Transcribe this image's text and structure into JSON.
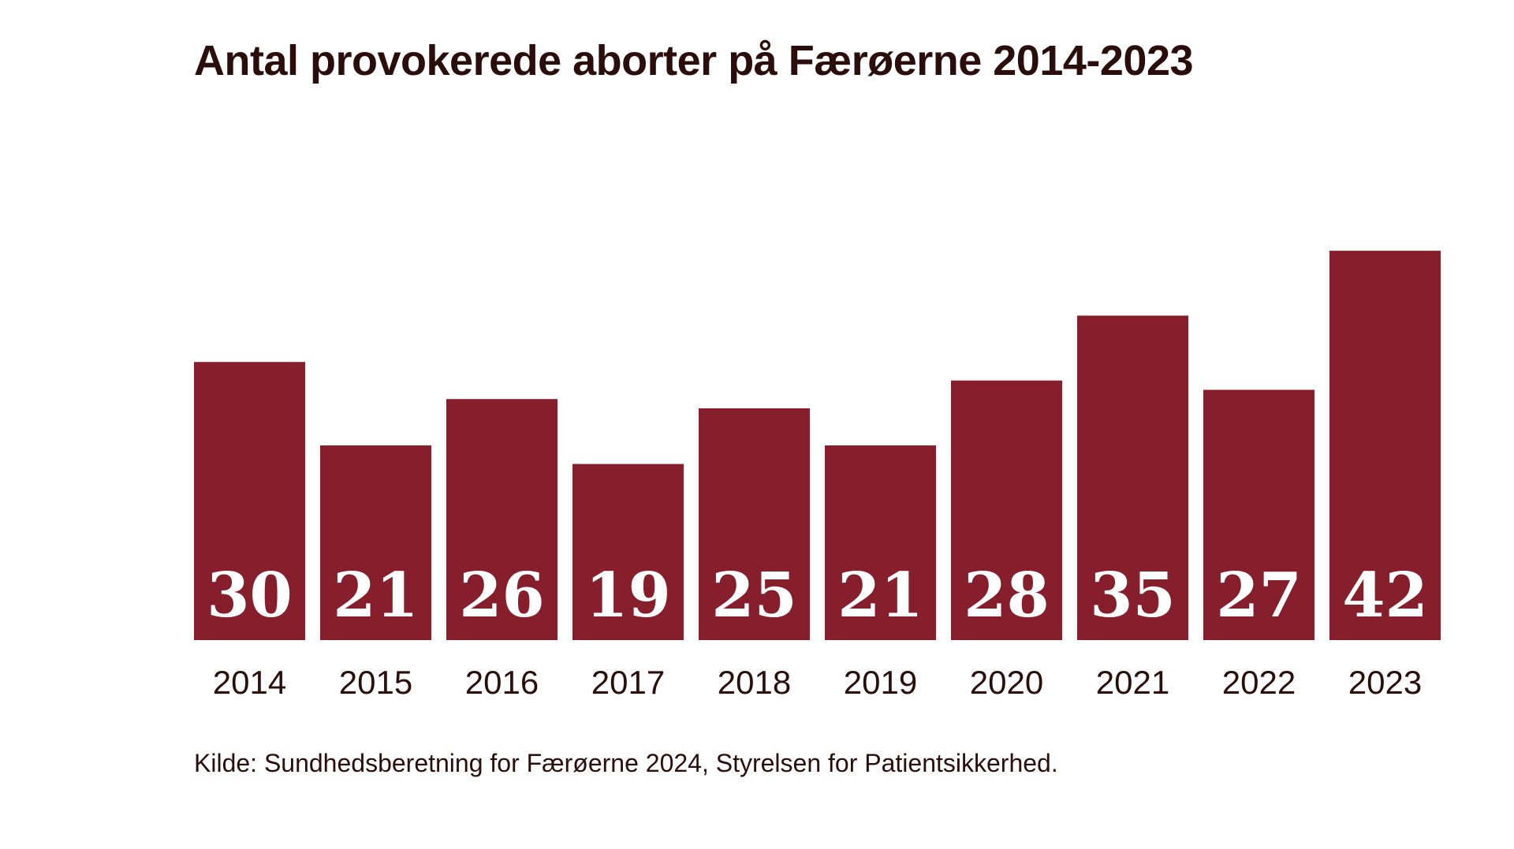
{
  "chart_data": {
    "type": "bar",
    "title": "Antal provokerede aborter på Færøerne 2014-2023",
    "categories": [
      "2014",
      "2015",
      "2016",
      "2017",
      "2018",
      "2019",
      "2020",
      "2021",
      "2022",
      "2023"
    ],
    "values": [
      30,
      21,
      26,
      19,
      25,
      21,
      28,
      35,
      27,
      42
    ],
    "data_labels": [
      "30",
      "21",
      "26",
      "19",
      "25",
      "21",
      "28",
      "35",
      "27",
      "42"
    ],
    "bar_color": "#861f2b",
    "grid": false,
    "legend": "none",
    "xlabel": "",
    "ylabel": "",
    "source": "Kilde: Sundhedsberetning for Færøerne 2024, Styrelsen for Patientsikkerhed."
  }
}
